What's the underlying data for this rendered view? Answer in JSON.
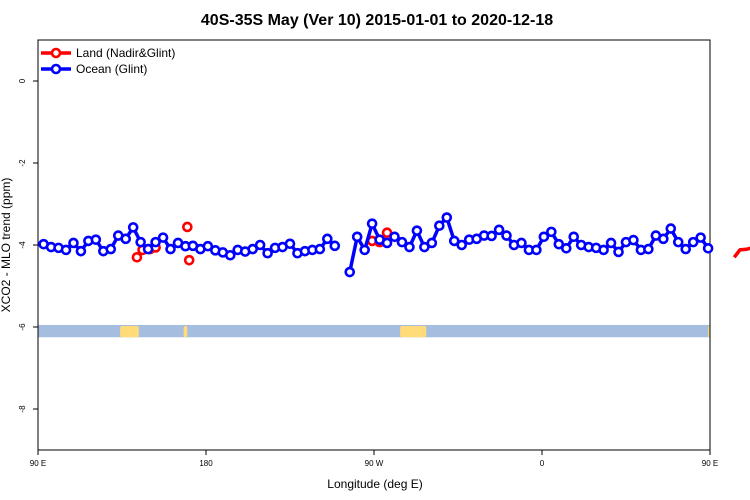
{
  "chart_data": {
    "type": "line",
    "title": "40S-35S May (Ver 10)   2015-01-01 to 2020-12-18",
    "xlabel": "Longitude (deg E)",
    "ylabel": "XCO2 - MLO trend (ppm)",
    "xlim": [
      90,
      450
    ],
    "ylim": [
      -9,
      1
    ],
    "x_ticks": [
      {
        "value": 90,
        "label": "90 E"
      },
      {
        "value": 180,
        "label": "180"
      },
      {
        "value": 270,
        "label": "90 W"
      },
      {
        "value": 360,
        "label": "0"
      },
      {
        "value": 450,
        "label": "90 E"
      },
      {
        "value": 540,
        "label": "180"
      }
    ],
    "y_ticks": [
      {
        "value": 0,
        "label": "0"
      },
      {
        "value": -2,
        "label": "-2"
      },
      {
        "value": -4,
        "label": "-4"
      },
      {
        "value": -6,
        "label": "-6"
      },
      {
        "value": -8,
        "label": "-8"
      }
    ],
    "legend_position": "top-left",
    "series": [
      {
        "name": "Land (Nadir&Glint)",
        "color": "#ff0000",
        "segments": [
          [
            [
              143,
              -4.3
            ],
            [
              146,
              -4.12
            ],
            [
              150,
              -4.1
            ],
            [
              153,
              -4.06
            ]
          ],
          [
            [
              170,
              -3.56
            ]
          ],
          [
            [
              171,
              -4.37
            ]
          ],
          [
            [
              269,
              -3.9
            ],
            [
              273,
              -3.93
            ],
            [
              277,
              -3.7
            ]
          ],
          [
            [
              463,
              -4.3
            ],
            [
              466,
              -4.12
            ],
            [
              470,
              -4.1
            ],
            [
              473,
              -4.06
            ]
          ],
          [
            [
              490,
              -3.56
            ]
          ],
          [
            [
              491,
              -4.37
            ]
          ]
        ]
      },
      {
        "name": "Ocean (Glint)",
        "color": "#0000ff",
        "segments": [
          [
            [
              93,
              -3.98
            ],
            [
              97,
              -4.05
            ],
            [
              101,
              -4.07
            ],
            [
              105,
              -4.12
            ],
            [
              109,
              -3.95
            ],
            [
              113,
              -4.15
            ],
            [
              117,
              -3.9
            ],
            [
              121,
              -3.87
            ],
            [
              125,
              -4.15
            ],
            [
              129,
              -4.1
            ],
            [
              133,
              -3.77
            ],
            [
              137,
              -3.85
            ],
            [
              141,
              -3.57
            ],
            [
              145,
              -3.93
            ],
            [
              149,
              -4.1
            ],
            [
              153,
              -3.93
            ],
            [
              157,
              -3.82
            ],
            [
              161,
              -4.1
            ],
            [
              165,
              -3.95
            ],
            [
              169,
              -4.03
            ],
            [
              173,
              -4.02
            ],
            [
              177,
              -4.1
            ],
            [
              181,
              -4.03
            ],
            [
              185,
              -4.13
            ],
            [
              189,
              -4.18
            ],
            [
              193,
              -4.25
            ],
            [
              197,
              -4.12
            ],
            [
              201,
              -4.16
            ],
            [
              205,
              -4.1
            ],
            [
              209,
              -4.0
            ],
            [
              213,
              -4.2
            ],
            [
              217,
              -4.07
            ],
            [
              221,
              -4.05
            ],
            [
              225,
              -3.97
            ],
            [
              229,
              -4.2
            ],
            [
              233,
              -4.15
            ],
            [
              237,
              -4.12
            ],
            [
              241,
              -4.1
            ],
            [
              245,
              -3.85
            ],
            [
              249,
              -4.02
            ]
          ],
          [
            [
              257,
              -4.66
            ],
            [
              261,
              -3.8
            ],
            [
              265,
              -4.12
            ],
            [
              269,
              -3.48
            ],
            [
              273,
              -3.87
            ],
            [
              277,
              -3.95
            ],
            [
              281,
              -3.8
            ],
            [
              285,
              -3.93
            ],
            [
              289,
              -4.05
            ],
            [
              293,
              -3.65
            ],
            [
              297,
              -4.05
            ],
            [
              301,
              -3.95
            ],
            [
              305,
              -3.53
            ],
            [
              309,
              -3.33
            ],
            [
              313,
              -3.9
            ],
            [
              317,
              -4.0
            ],
            [
              321,
              -3.87
            ],
            [
              325,
              -3.85
            ],
            [
              329,
              -3.77
            ],
            [
              333,
              -3.78
            ],
            [
              337,
              -3.63
            ],
            [
              341,
              -3.77
            ],
            [
              345,
              -4.0
            ],
            [
              349,
              -3.95
            ],
            [
              353,
              -4.12
            ],
            [
              357,
              -4.12
            ],
            [
              361,
              -3.8
            ],
            [
              365,
              -3.68
            ],
            [
              369,
              -3.98
            ],
            [
              373,
              -4.08
            ],
            [
              377,
              -3.8
            ],
            [
              381,
              -4.0
            ],
            [
              385,
              -4.05
            ],
            [
              389,
              -4.07
            ],
            [
              393,
              -4.12
            ],
            [
              397,
              -3.95
            ],
            [
              401,
              -4.17
            ],
            [
              405,
              -3.93
            ],
            [
              409,
              -3.88
            ],
            [
              413,
              -4.12
            ],
            [
              417,
              -4.1
            ],
            [
              421,
              -3.77
            ],
            [
              425,
              -3.85
            ],
            [
              429,
              -3.6
            ],
            [
              433,
              -3.93
            ],
            [
              437,
              -4.1
            ],
            [
              441,
              -3.93
            ],
            [
              445,
              -3.82
            ],
            [
              449,
              -4.08
            ]
          ]
        ]
      }
    ],
    "land_band": {
      "y_range": [
        -6.25,
        -5.95
      ],
      "ocean_color": "#a5bee0",
      "land_color": "#ffdc78",
      "land_lon_ranges": [
        [
          134,
          144
        ],
        [
          168,
          170
        ],
        [
          284,
          298
        ],
        [
          453,
          464
        ],
        [
          449,
          450
        ]
      ]
    }
  }
}
